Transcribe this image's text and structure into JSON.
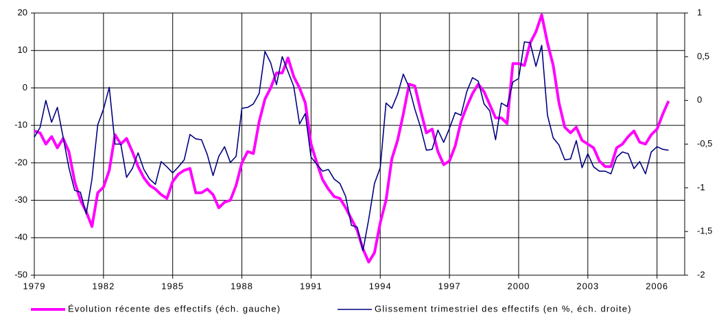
{
  "chart_data": {
    "type": "line",
    "x": [
      1979,
      1979.25,
      1979.5,
      1979.75,
      1980,
      1980.25,
      1980.5,
      1980.75,
      1981,
      1981.25,
      1981.5,
      1981.75,
      1982,
      1982.25,
      1982.5,
      1982.75,
      1983,
      1983.25,
      1983.5,
      1983.75,
      1984,
      1984.25,
      1984.5,
      1984.75,
      1985,
      1985.25,
      1985.5,
      1985.75,
      1986,
      1986.25,
      1986.5,
      1986.75,
      1987,
      1987.25,
      1987.5,
      1987.75,
      1988,
      1988.25,
      1988.5,
      1988.75,
      1989,
      1989.25,
      1989.5,
      1989.75,
      1990,
      1990.25,
      1990.5,
      1990.75,
      1991,
      1991.25,
      1991.5,
      1991.75,
      1992,
      1992.25,
      1992.5,
      1992.75,
      1993,
      1993.25,
      1993.5,
      1993.75,
      1994,
      1994.25,
      1994.5,
      1994.75,
      1995,
      1995.25,
      1995.5,
      1995.75,
      1996,
      1996.25,
      1996.5,
      1996.75,
      1997,
      1997.25,
      1997.5,
      1997.75,
      1998,
      1998.25,
      1998.5,
      1998.75,
      1999,
      1999.25,
      1999.5,
      1999.75,
      2000,
      2000.25,
      2000.5,
      2000.75,
      2001,
      2001.25,
      2001.5,
      2001.75,
      2002,
      2002.25,
      2002.5,
      2002.75,
      2003,
      2003.25,
      2003.5,
      2003.75,
      2004,
      2004.25,
      2004.5,
      2004.75,
      2005,
      2005.25,
      2005.5,
      2005.75,
      2006,
      2006.25,
      2006.5
    ],
    "series": [
      {
        "name": "Évolution récente des effectifs (éch. gauche)",
        "color": "#ff00ff",
        "values": [
          -11.5,
          -12,
          -15,
          -13,
          -16,
          -13.5,
          -17,
          -25,
          -30,
          -33,
          -37,
          -28,
          -26.5,
          -22,
          -12.5,
          -15,
          -13.5,
          -17,
          -21,
          -24,
          -26,
          -27,
          -28.5,
          -29.5,
          -25,
          -23,
          -22,
          -21.5,
          -28,
          -28,
          -27,
          -28.5,
          -32,
          -30.5,
          -30,
          -26,
          -20,
          -17,
          -17.5,
          -9,
          -3,
          0,
          4,
          4,
          8,
          3,
          0,
          -4,
          -15,
          -20,
          -24.5,
          -27,
          -29,
          -29.5,
          -32,
          -35,
          -38,
          -43,
          -46.5,
          -44,
          -36,
          -30,
          -19,
          -14,
          -7,
          1,
          0.5,
          -6,
          -12,
          -11,
          -17,
          -20.5,
          -19.5,
          -15.5,
          -9,
          -5,
          -1.5,
          1,
          -1,
          -4.5,
          -8,
          -8,
          -9.5,
          6.5,
          6.5,
          6,
          12,
          15,
          19.5,
          12,
          6,
          -4,
          -10.5,
          -12,
          -10.5,
          -14,
          -15,
          -16,
          -19.5,
          -21,
          -21,
          -16,
          -15,
          -13,
          -11.5,
          -14.5,
          -15,
          -12.5,
          -11,
          -7,
          -3.5
        ]
      },
      {
        "name": "Glissement trimestriel des effectifs (en %, éch. droite)",
        "color": "#000080",
        "axis": "y2",
        "values": [
          -0.42,
          -0.31,
          0,
          -0.25,
          -0.08,
          -0.42,
          -0.77,
          -1.03,
          -1.05,
          -1.3,
          -0.9,
          -0.28,
          -0.1,
          0.15,
          -0.5,
          -0.5,
          -0.88,
          -0.78,
          -0.6,
          -0.79,
          -0.9,
          -0.96,
          -0.7,
          -0.76,
          -0.83,
          -0.76,
          -0.68,
          -0.39,
          -0.44,
          -0.45,
          -0.62,
          -0.86,
          -0.64,
          -0.53,
          -0.71,
          -0.64,
          -0.09,
          -0.08,
          -0.04,
          0.08,
          0.56,
          0.43,
          0.18,
          0.5,
          0.33,
          0.16,
          -0.27,
          -0.15,
          -0.65,
          -0.73,
          -0.81,
          -0.79,
          -0.9,
          -0.95,
          -1.1,
          -1.43,
          -1.45,
          -1.72,
          -1.36,
          -0.95,
          -0.77,
          -0.03,
          -0.09,
          0.07,
          0.3,
          0.15,
          -0.1,
          -0.31,
          -0.57,
          -0.56,
          -0.34,
          -0.48,
          -0.32,
          -0.14,
          -0.17,
          0.1,
          0.26,
          0.22,
          -0.04,
          -0.12,
          -0.45,
          -0.03,
          -0.07,
          0.21,
          0.25,
          0.67,
          0.66,
          0.39,
          0.63,
          -0.17,
          -0.43,
          -0.51,
          -0.68,
          -0.67,
          -0.46,
          -0.77,
          -0.61,
          -0.76,
          -0.81,
          -0.81,
          -0.84,
          -0.65,
          -0.59,
          -0.61,
          -0.78,
          -0.7,
          -0.84,
          -0.59,
          -0.53,
          -0.56,
          -0.57
        ]
      }
    ],
    "xlim": [
      1979,
      2007.2
    ],
    "xticks": [
      1979,
      1982,
      1985,
      1988,
      1991,
      1994,
      1997,
      2000,
      2003,
      2006
    ],
    "ylim": [
      -50,
      20
    ],
    "yticks": [
      -50,
      -40,
      -30,
      -20,
      -10,
      0,
      10,
      20
    ],
    "y2lim": [
      -2,
      1
    ],
    "y2ticks": [
      -2,
      {
        "value": -1.5,
        "label": "-1,5"
      },
      -1,
      {
        "value": -0.5,
        "label": "-0,5"
      },
      0,
      {
        "value": 0.5,
        "label": "0,5"
      },
      1
    ],
    "grid": true,
    "legend": "bottom"
  }
}
